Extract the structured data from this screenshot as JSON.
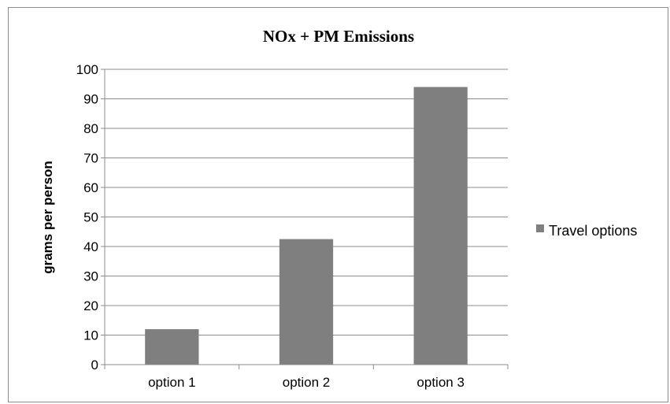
{
  "chart_data": {
    "type": "bar",
    "title": "NOx + PM Emissions",
    "ylabel": "grams per person",
    "xlabel": "",
    "categories": [
      "option 1",
      "option 2",
      "option 3"
    ],
    "series": [
      {
        "name": "Travel options",
        "values": [
          12,
          42.5,
          94
        ],
        "color": "#7f7f7f"
      }
    ],
    "ylim": [
      0,
      100
    ],
    "yticks": [
      "0",
      "10",
      "20",
      "30",
      "40",
      "50",
      "60",
      "70",
      "80",
      "90",
      "100"
    ],
    "grid": true,
    "legend_position": "right"
  }
}
